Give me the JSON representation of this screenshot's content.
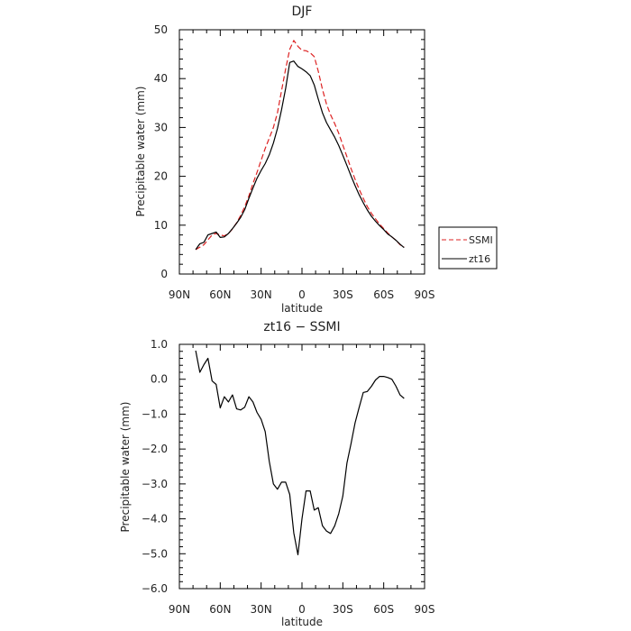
{
  "chart_data": [
    {
      "type": "line",
      "title": "DJF",
      "xlabel": "latitude",
      "ylabel": "Precipitable water (mm)",
      "xlim": [
        90,
        -90
      ],
      "ylim": [
        0,
        50
      ],
      "x_ticks": [
        90,
        60,
        30,
        0,
        -30,
        -60,
        -90
      ],
      "x_tick_labels": [
        "90N",
        "60N",
        "30N",
        "0",
        "30S",
        "60S",
        "90S"
      ],
      "y_ticks": [
        0,
        10,
        20,
        30,
        40,
        50
      ],
      "y_tick_labels": [
        "0",
        "10",
        "20",
        "30",
        "40",
        "50"
      ],
      "grid": false,
      "legend_position": "right",
      "series": [
        {
          "name": "SSMI",
          "color": "#dd2222",
          "dash": "dashed",
          "x": [
            78,
            75,
            72,
            69,
            66,
            63,
            60,
            57,
            54,
            51,
            48,
            45,
            42,
            39,
            36,
            33,
            30,
            27,
            24,
            21,
            18,
            15,
            12,
            9,
            6,
            3,
            0,
            -3,
            -6,
            -9,
            -12,
            -15,
            -18,
            -21,
            -24,
            -27,
            -30,
            -33,
            -36,
            -39,
            -42,
            -45,
            -48,
            -51,
            -54,
            -57,
            -60,
            -63,
            -66,
            -69,
            -72,
            -75
          ],
          "y": [
            5.0,
            5.5,
            6.0,
            7.0,
            8.0,
            8.3,
            8.0,
            7.8,
            8.3,
            9.2,
            10.5,
            12.0,
            13.8,
            16.0,
            18.5,
            20.8,
            23.3,
            25.7,
            27.8,
            30.0,
            33.0,
            37.5,
            42.0,
            46.0,
            47.8,
            46.6,
            45.8,
            45.7,
            45.3,
            44.5,
            41.5,
            37.8,
            34.8,
            32.6,
            30.8,
            28.8,
            26.4,
            24.0,
            21.6,
            19.4,
            17.3,
            15.5,
            13.8,
            12.4,
            11.3,
            10.2,
            9.3,
            8.4,
            7.6,
            6.9,
            6.0,
            5.5
          ]
        },
        {
          "name": "zt16",
          "color": "#000000",
          "dash": "solid",
          "x": [
            78,
            75,
            72,
            69,
            66,
            63,
            60,
            57,
            54,
            51,
            48,
            45,
            42,
            39,
            36,
            33,
            30,
            27,
            24,
            21,
            18,
            15,
            12,
            9,
            6,
            3,
            0,
            -3,
            -6,
            -9,
            -12,
            -15,
            -18,
            -21,
            -24,
            -27,
            -30,
            -33,
            -36,
            -39,
            -42,
            -45,
            -48,
            -51,
            -54,
            -57,
            -60,
            -63,
            -66,
            -69,
            -72,
            -75
          ],
          "y": [
            5.0,
            6.2,
            6.5,
            8.0,
            8.3,
            8.6,
            7.5,
            7.6,
            8.3,
            9.3,
            10.4,
            11.6,
            13.2,
            15.5,
            17.6,
            19.6,
            21.2,
            22.6,
            24.4,
            26.8,
            29.8,
            33.6,
            38.0,
            43.3,
            43.6,
            42.5,
            42.0,
            41.4,
            40.6,
            38.7,
            35.8,
            33.0,
            31.0,
            29.5,
            28.0,
            26.3,
            24.3,
            22.2,
            20.1,
            18.1,
            16.2,
            14.6,
            13.1,
            11.8,
            10.8,
            9.9,
            9.1,
            8.2,
            7.6,
            6.9,
            6.1,
            5.4
          ]
        }
      ]
    },
    {
      "type": "line",
      "title": "zt16 − SSMI",
      "xlabel": "latitude",
      "ylabel": "Precipitable water (mm)",
      "xlim": [
        90,
        -90
      ],
      "ylim": [
        -6.0,
        1.0
      ],
      "x_ticks": [
        90,
        60,
        30,
        0,
        -30,
        -60,
        -90
      ],
      "x_tick_labels": [
        "90N",
        "60N",
        "30N",
        "0",
        "30S",
        "60S",
        "90S"
      ],
      "y_ticks": [
        1.0,
        0.0,
        -1.0,
        -2.0,
        -3.0,
        -4.0,
        -5.0,
        -6.0
      ],
      "y_tick_labels": [
        "1.0",
        "0.0",
        "−1.0",
        "−2.0",
        "−3.0",
        "−4.0",
        "−5.0",
        "−6.0"
      ],
      "grid": false,
      "series": [
        {
          "color": "#000000",
          "dash": "solid",
          "x": [
            78,
            75,
            72,
            69,
            66,
            63,
            60,
            57,
            54,
            51,
            48,
            45,
            42,
            39,
            36,
            33,
            30,
            27,
            24,
            21,
            18,
            15,
            12,
            9,
            6,
            3,
            0,
            -3,
            -6,
            -9,
            -12,
            -15,
            -18,
            -21,
            -24,
            -27,
            -30,
            -33,
            -36,
            -39,
            -42,
            -45,
            -48,
            -51,
            -54,
            -57,
            -60,
            -63,
            -66,
            -69,
            -72,
            -75
          ],
          "y": [
            0.82,
            0.2,
            0.42,
            0.6,
            -0.05,
            -0.15,
            -0.82,
            -0.5,
            -0.65,
            -0.45,
            -0.85,
            -0.88,
            -0.8,
            -0.5,
            -0.65,
            -0.95,
            -1.15,
            -1.5,
            -2.35,
            -3.0,
            -3.15,
            -2.95,
            -2.95,
            -3.3,
            -4.4,
            -5.03,
            -4.0,
            -3.2,
            -3.2,
            -3.75,
            -3.68,
            -4.2,
            -4.35,
            -4.42,
            -4.2,
            -3.85,
            -3.35,
            -2.4,
            -1.85,
            -1.25,
            -0.8,
            -0.38,
            -0.35,
            -0.2,
            -0.02,
            0.08,
            0.08,
            0.05,
            0.0,
            -0.2,
            -0.45,
            -0.55
          ]
        }
      ]
    }
  ]
}
